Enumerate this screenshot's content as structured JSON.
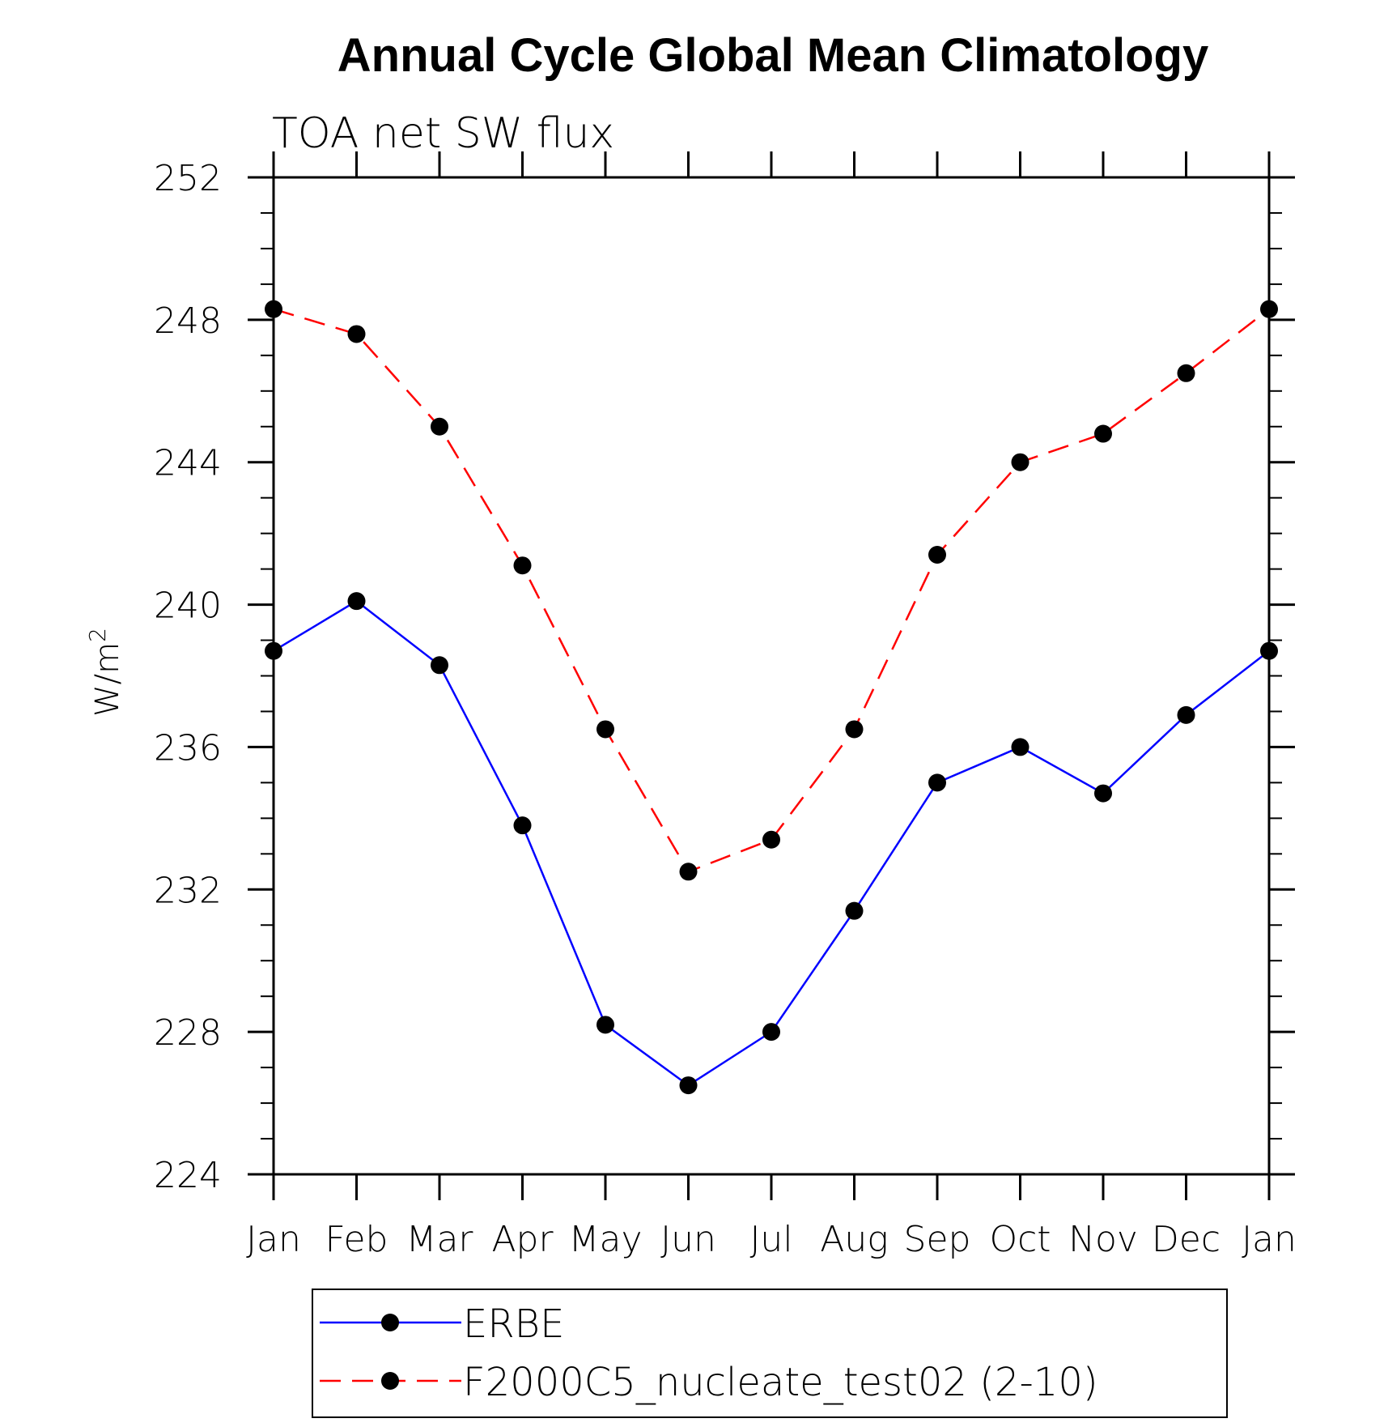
{
  "chart_data": {
    "type": "line",
    "title": "Annual Cycle Global Mean Climatology",
    "subtitle": "TOA net SW flux",
    "ylabel": "W/m",
    "ylabel_superscript": "2",
    "categories": [
      "Jan",
      "Feb",
      "Mar",
      "Apr",
      "May",
      "Jun",
      "Jul",
      "Aug",
      "Sep",
      "Oct",
      "Nov",
      "Dec",
      "Jan"
    ],
    "ylim": [
      224,
      252
    ],
    "yticks": [
      "224",
      "228",
      "232",
      "236",
      "240",
      "244",
      "248",
      "252"
    ],
    "series": [
      {
        "name": "ERBE",
        "color": "#0000ff",
        "dashed": false,
        "values": [
          238.7,
          240.1,
          238.3,
          233.8,
          228.2,
          226.5,
          228.0,
          231.4,
          235.0,
          236.0,
          234.7,
          236.9,
          238.7
        ]
      },
      {
        "name": "F2000C5_nucleate_test02 (2-10)",
        "color": "#ff0000",
        "dashed": true,
        "values": [
          248.3,
          247.6,
          245.0,
          241.1,
          236.5,
          232.5,
          233.4,
          236.5,
          241.4,
          244.0,
          244.8,
          246.5,
          248.3
        ]
      }
    ],
    "legend_position": "bottom"
  }
}
